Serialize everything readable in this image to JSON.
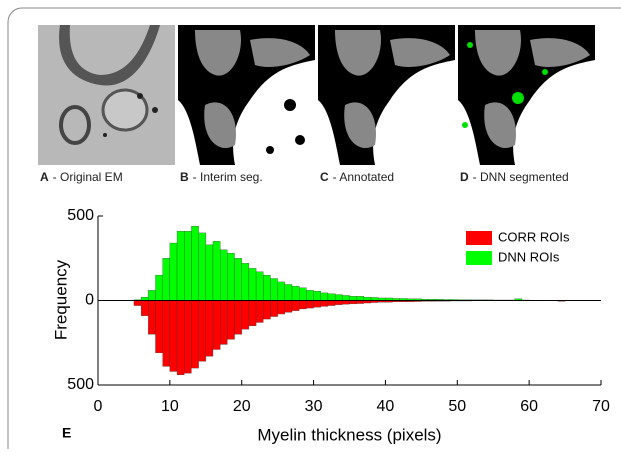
{
  "panels": [
    {
      "letter": "A",
      "caption": "- Original EM"
    },
    {
      "letter": "B",
      "caption": "- Interim seg."
    },
    {
      "letter": "C",
      "caption": "- Annotated"
    },
    {
      "letter": "D",
      "caption": "- DNN segmented"
    }
  ],
  "panel_e_label": "E",
  "chart_data": {
    "type": "histogram",
    "xlabel": "Myelin thickness (pixels)",
    "ylabel": "Frequency",
    "bins": [
      5,
      6,
      7,
      8,
      9,
      10,
      11,
      12,
      13,
      14,
      15,
      16,
      17,
      18,
      19,
      20,
      21,
      22,
      23,
      24,
      25,
      26,
      27,
      28,
      29,
      30,
      31,
      32,
      33,
      34,
      35,
      36,
      37,
      38,
      39,
      40,
      41,
      42,
      43,
      44,
      45,
      46,
      47,
      48,
      49,
      50,
      51,
      52,
      53,
      54,
      55,
      56,
      57,
      58,
      59,
      60,
      61,
      62,
      63,
      64,
      65,
      66
    ],
    "series": [
      {
        "name": "CORR ROIs",
        "color": "#ff0000",
        "values": [
          -30,
          -90,
          -200,
          -310,
          -390,
          -420,
          -440,
          -430,
          -400,
          -360,
          -330,
          -290,
          -260,
          -230,
          -200,
          -170,
          -150,
          -130,
          -110,
          -95,
          -80,
          -70,
          -60,
          -50,
          -45,
          -40,
          -35,
          -30,
          -25,
          -22,
          -20,
          -18,
          -15,
          -12,
          -10,
          -10,
          -8,
          -8,
          -7,
          -6,
          -5,
          -5,
          -4,
          -4,
          -3,
          -3,
          -3,
          -2,
          -2,
          -2,
          -2,
          -2,
          -2,
          -2,
          -1,
          -1,
          -1,
          -1,
          -1,
          -5,
          -1
        ]
      },
      {
        "name": "DNN ROIs",
        "color": "#00ff00",
        "values": [
          5,
          20,
          60,
          150,
          250,
          340,
          410,
          410,
          440,
          400,
          330,
          350,
          300,
          280,
          250,
          220,
          190,
          170,
          150,
          130,
          110,
          95,
          85,
          75,
          60,
          55,
          45,
          40,
          35,
          30,
          25,
          25,
          20,
          18,
          15,
          15,
          12,
          12,
          10,
          10,
          8,
          8,
          7,
          6,
          6,
          5,
          5,
          4,
          4,
          4,
          3,
          3,
          3,
          10,
          3,
          2,
          2,
          2,
          2,
          2,
          1
        ]
      }
    ],
    "xlim": [
      0,
      70
    ],
    "xticks": [
      0,
      10,
      20,
      30,
      40,
      50,
      60,
      70
    ],
    "ylim": [
      -500,
      500
    ],
    "yticks": [
      {
        "value": -500,
        "label": "500"
      },
      0,
      500
    ],
    "legend": "upper right"
  }
}
